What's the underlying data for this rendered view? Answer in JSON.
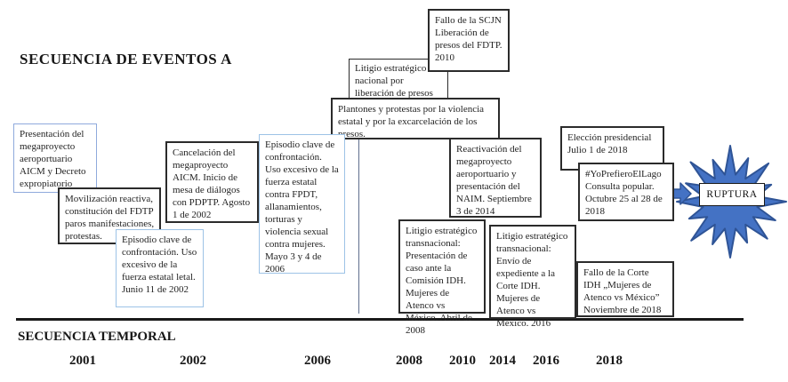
{
  "header": {
    "title": "SECUENCIA DE EVENTOS A"
  },
  "events": {
    "presentacion": {
      "text": "Presentación del megaproyecto aeroportuario AICM y Decreto expropiatorio"
    },
    "movilizacion": {
      "text": "Movilización reactiva, constitución del FDTP paros manifestaciones, protestas."
    },
    "junio2002": {
      "text": "Episodio clave de confrontación. Uso excesivo de la fuerza estatal letal. Junio 11 de 2002"
    },
    "cancelacion": {
      "text": "Cancelación del megaproyecto AICM. Inicio de mesa de diálogos con PDPTP. Agosto 1 de 2002"
    },
    "mayo2006": {
      "text": "Episodio clave de confrontación. Uso excesivo de la fuerza estatal contra FPDT, allanamientos, torturas y violencia sexual contra mujeres. Mayo 3 y 4 de 2006"
    },
    "litigio_nacional": {
      "text": "Litigio estratégico nacional por liberación de presos del FDTP"
    },
    "fallo_scjn": {
      "text": "Fallo de la SCJN Liberación de presos del FDTP. 2010"
    },
    "plantones": {
      "text": "Plantones y protestas por la violencia estatal y por la excarcelación de los presos."
    },
    "reactivacion": {
      "text": "Reactivación del megaproyecto aeroportuario y presentación del NAIM. Septiembre 3 de 2014"
    },
    "litigio2008": {
      "text": "Litigio estratégico transnacional: Presentación de caso ante la Comisión IDH. Mujeres de Atenco vs México. Abril de 2008"
    },
    "litigio2016": {
      "text": "Litigio estratégico transnacional: Envío de expediente a la Corte IDH. Mujeres de Atenco vs México. 2016"
    },
    "eleccion": {
      "text": "Elección presidencial Julio 1 de 2018"
    },
    "yoprefiero": {
      "text": "#YoPrefieroElLago Consulta popular. Octubre 25 al 28 de 2018"
    },
    "fallo_corte": {
      "text": "Fallo de la Corte IDH „Mujeres de Atenco vs México” Noviembre de 2018"
    }
  },
  "rupture": {
    "label": "RUPTURA"
  },
  "timeline": {
    "title": "SECUENCIA TEMPORAL",
    "years": [
      "2001",
      "2002",
      "2006",
      "2008",
      "2010",
      "2014",
      "2016",
      "2018"
    ]
  },
  "colors": {
    "star_fill": "#4472C4",
    "star_stroke": "#2F5496",
    "blue_box_border": "#9dc3e6",
    "black_box_border": "#2b2b2b"
  }
}
